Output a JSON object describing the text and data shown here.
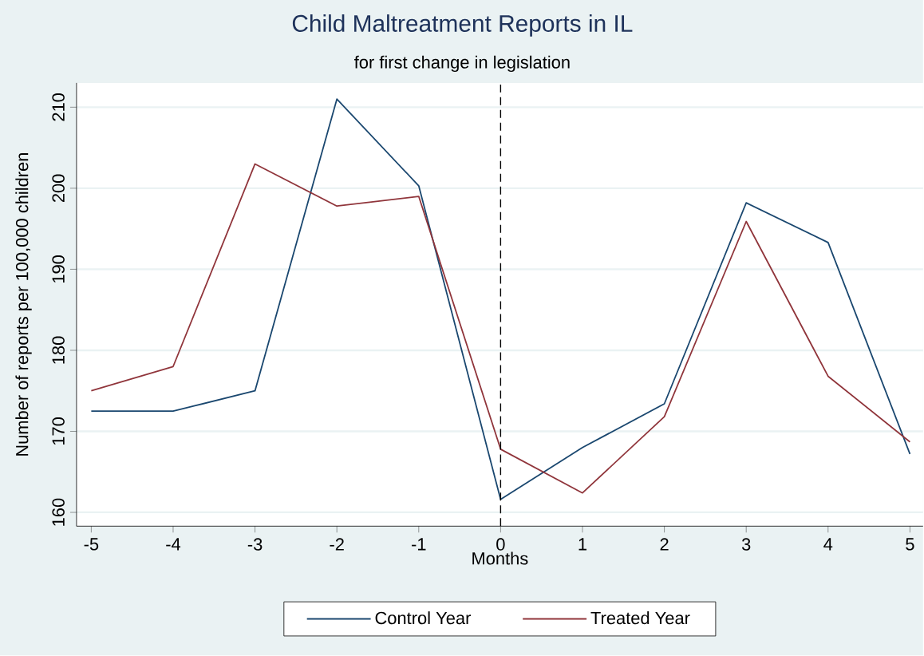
{
  "chart_data": {
    "type": "line",
    "title": "Child Maltreatment Reports in IL",
    "subtitle": "for first change in legislation",
    "xlabel": "Months",
    "ylabel": "Number of reports per 100,000 children",
    "x": [
      -5,
      -4,
      -3,
      -2,
      -1,
      0,
      1,
      2,
      3,
      4,
      5
    ],
    "series": [
      {
        "name": "Control Year",
        "color": "#1a476f",
        "values": [
          172.5,
          172.5,
          175,
          211,
          200.3,
          161.6,
          168,
          173.4,
          198.2,
          193.3,
          167.2
        ]
      },
      {
        "name": "Treated Year",
        "color": "#90353b",
        "values": [
          175,
          178,
          203,
          197.8,
          199,
          167.8,
          162.4,
          171.8,
          195.9,
          176.8,
          168.7
        ]
      }
    ],
    "xlim": [
      -5.18,
      5.16
    ],
    "ylim": [
      158.3,
      213
    ],
    "xticks": [
      -5,
      -4,
      -3,
      -2,
      -1,
      0,
      1,
      2,
      3,
      4,
      5
    ],
    "yticks": [
      160,
      170,
      180,
      190,
      200,
      210
    ],
    "ref_lines": [
      {
        "axis": "x",
        "value": 0,
        "line_style": "dashed"
      }
    ],
    "grid": "y",
    "legend": "bottom",
    "marker": "none",
    "line_style": "solid"
  }
}
